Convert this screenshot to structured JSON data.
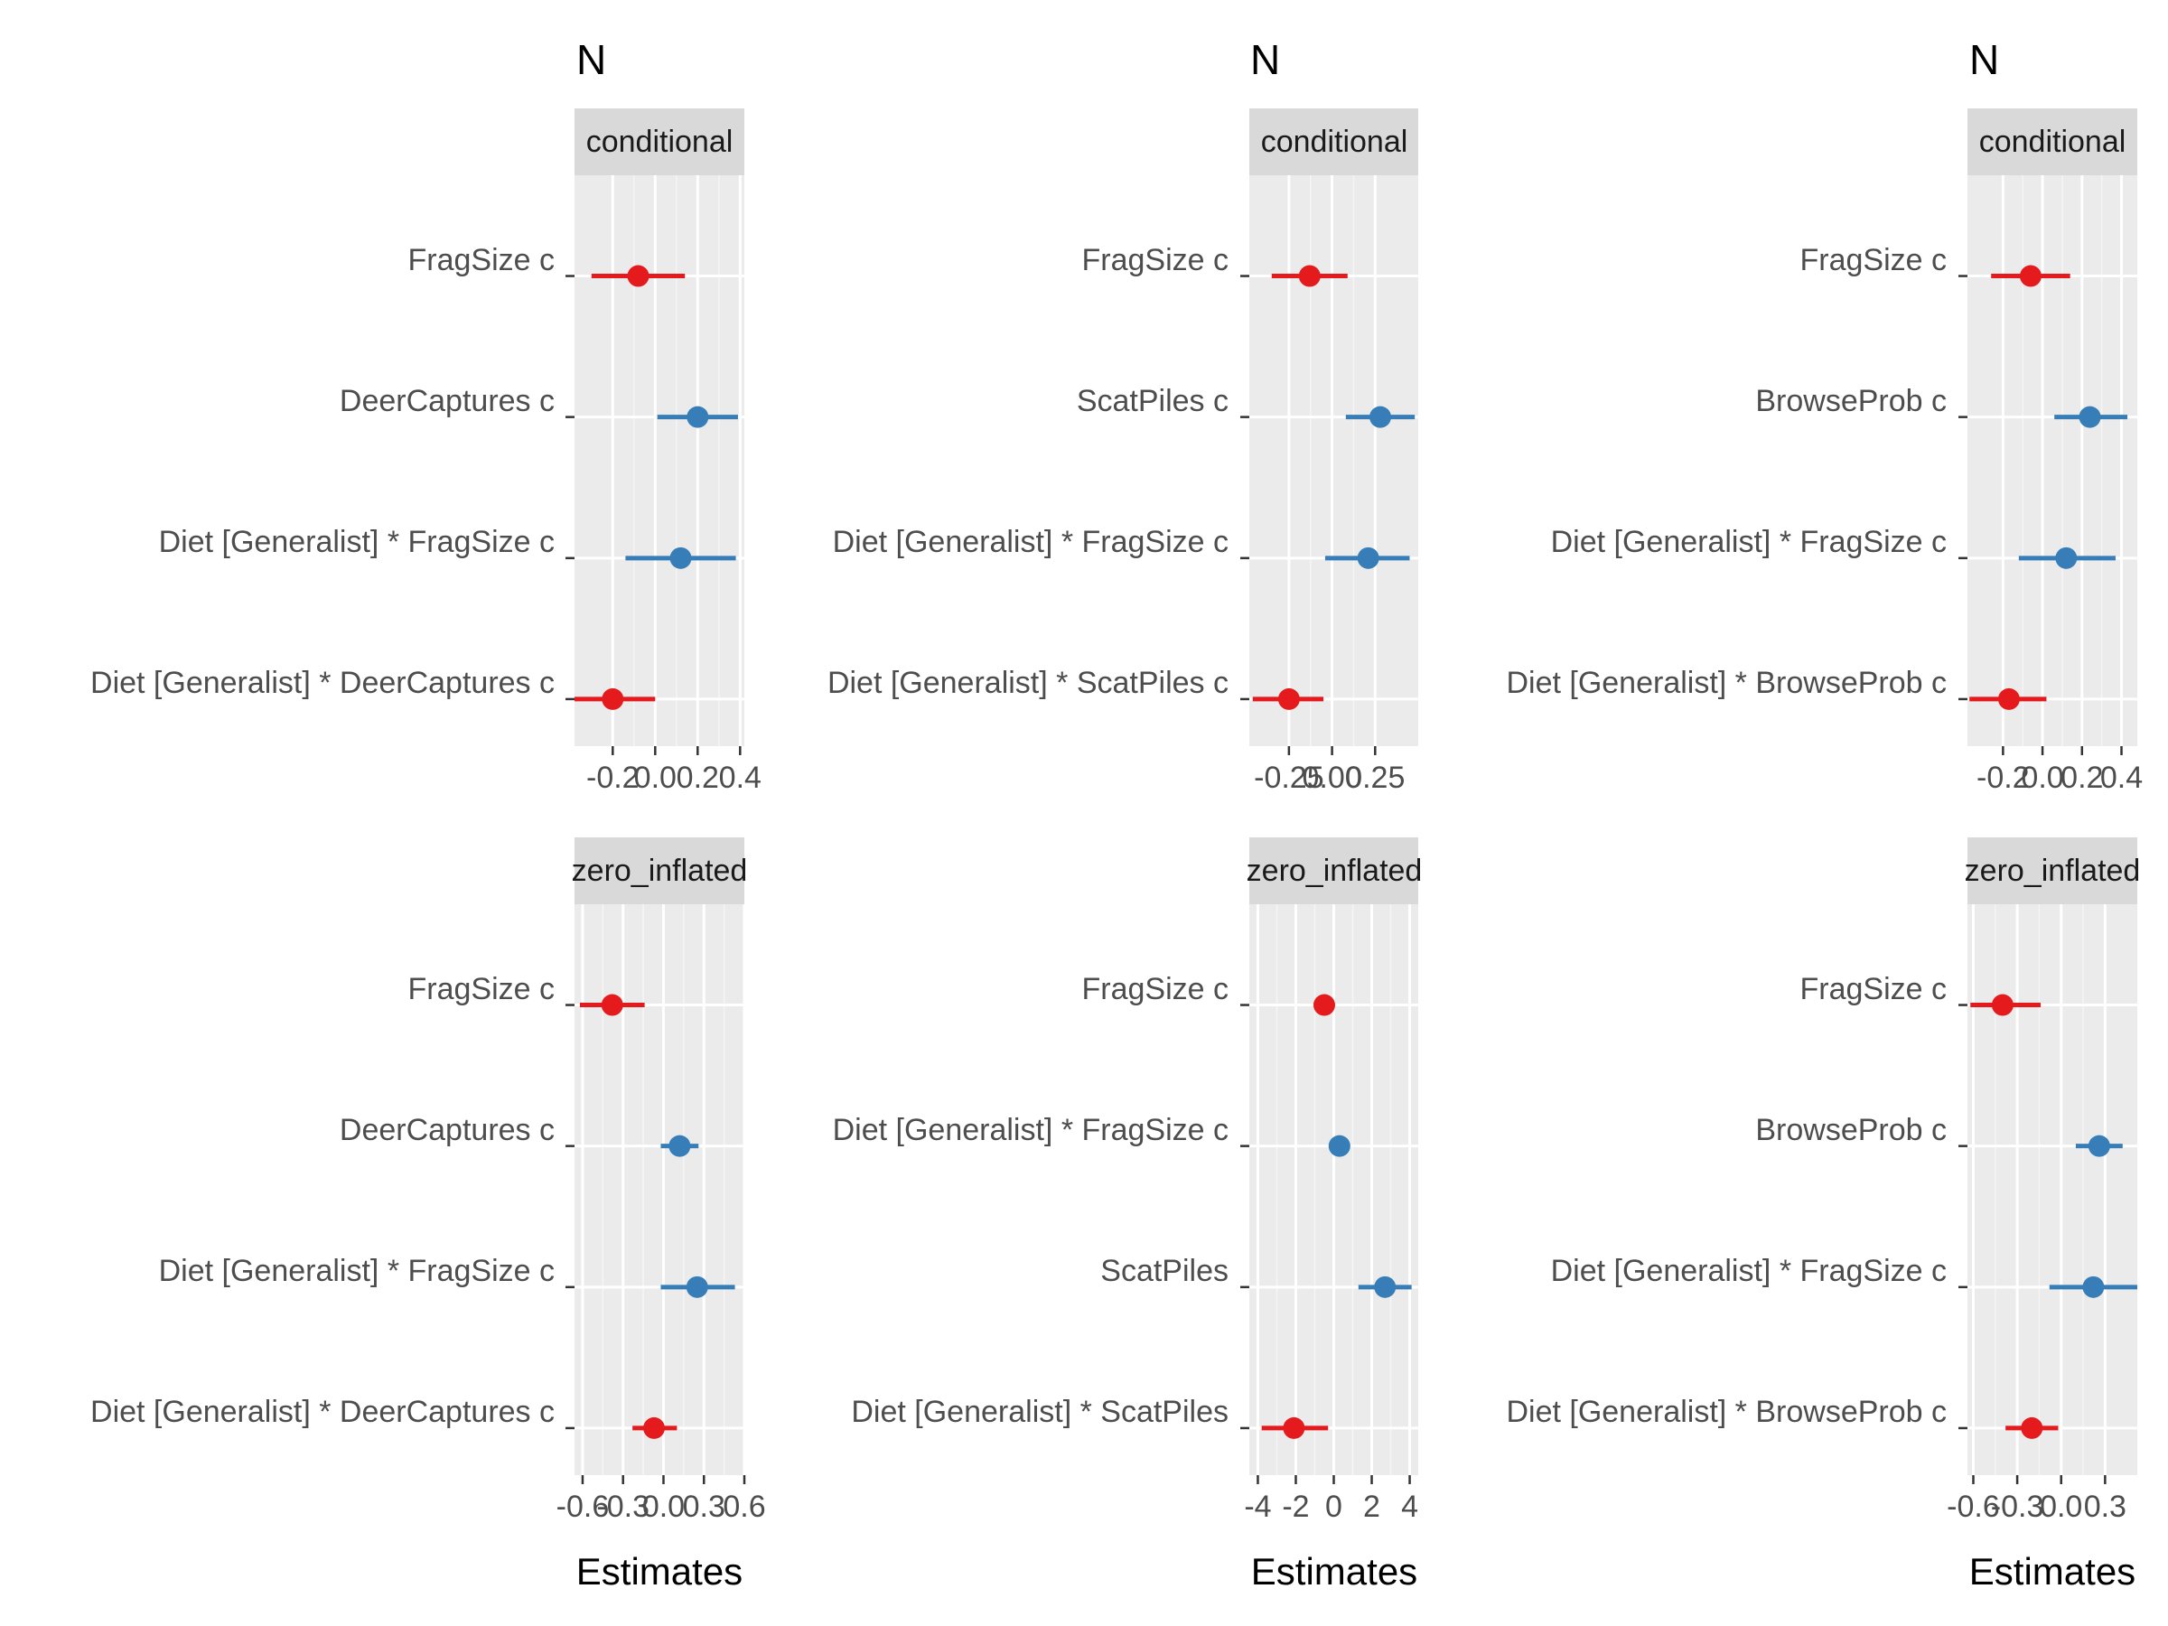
{
  "figure": {
    "columns": [
      {
        "title": "N",
        "xlabel": "Estimates",
        "panels": [
          {
            "strip": "conditional",
            "terms": [
              "FragSize c",
              "DeerCaptures c",
              "Diet [Generalist] * FragSize c",
              "Diet [Generalist] * DeerCaptures c"
            ],
            "ticks": [
              -0.2,
              0.0,
              0.2,
              0.4
            ],
            "tick_labels": [
              "-0.2",
              "0.0",
              "0.2",
              "0.4"
            ],
            "xlim": [
              -0.38,
              0.42
            ]
          },
          {
            "strip": "zero_inflated",
            "terms": [
              "FragSize c",
              "DeerCaptures c",
              "Diet [Generalist] * FragSize c",
              "Diet [Generalist] * DeerCaptures c"
            ],
            "ticks": [
              -0.6,
              -0.3,
              0.0,
              0.3,
              0.6
            ],
            "tick_labels": [
              "-0.6",
              "-0.3",
              "0.0",
              "0.3",
              "0.6"
            ],
            "xlim": [
              -0.66,
              0.6
            ]
          }
        ]
      },
      {
        "title": "N",
        "xlabel": "Estimates",
        "panels": [
          {
            "strip": "conditional",
            "terms": [
              "FragSize c",
              "ScatPiles c",
              "Diet [Generalist] * FragSize c",
              "Diet [Generalist] * ScatPiles c"
            ],
            "ticks": [
              -0.25,
              0.0,
              0.25
            ],
            "tick_labels": [
              "-0.25",
              "0.00",
              "0.25"
            ],
            "xlim": [
              -0.48,
              0.5
            ]
          },
          {
            "strip": "zero_inflated",
            "terms": [
              "FragSize c",
              "Diet [Generalist] * FragSize c",
              "ScatPiles",
              "Diet [Generalist] * ScatPiles"
            ],
            "ticks": [
              -4,
              -2,
              0,
              2,
              4
            ],
            "tick_labels": [
              "-4",
              "-2",
              "0",
              "2",
              "4"
            ],
            "xlim": [
              -4.45,
              4.45
            ]
          }
        ]
      },
      {
        "title": "N",
        "xlabel": "Estimates",
        "panels": [
          {
            "strip": "conditional",
            "terms": [
              "FragSize c",
              "BrowseProb c",
              "Diet [Generalist] * FragSize c",
              "Diet [Generalist] * BrowseProb c"
            ],
            "ticks": [
              -0.2,
              0.0,
              0.2,
              0.4
            ],
            "tick_labels": [
              "-0.2",
              "0.0",
              "0.2",
              "0.4"
            ],
            "xlim": [
              -0.38,
              0.48
            ]
          },
          {
            "strip": "zero_inflated",
            "terms": [
              "FragSize c",
              "BrowseProb c",
              "Diet [Generalist] * FragSize c",
              "Diet [Generalist] * BrowseProb c"
            ],
            "ticks": [
              -0.6,
              -0.3,
              0.0,
              0.3
            ],
            "tick_labels": [
              "-0.6",
              "-0.3",
              "0.0",
              "0.3"
            ],
            "xlim": [
              -0.64,
              0.52
            ]
          }
        ]
      }
    ]
  },
  "chart_data": [
    {
      "type": "scatter",
      "title": "N",
      "facet": "conditional",
      "xlabel": "Estimates",
      "categories": [
        "FragSize c",
        "DeerCaptures c",
        "Diet [Generalist] * FragSize c",
        "Diet [Generalist] * DeerCaptures c"
      ],
      "estimates": [
        -0.08,
        0.2,
        0.12,
        -0.2
      ],
      "ci_low": [
        -0.3,
        0.01,
        -0.14,
        -0.38
      ],
      "ci_high": [
        0.14,
        0.39,
        0.38,
        0.0
      ],
      "colors": [
        "#E41A1C",
        "#377EB8",
        "#377EB8",
        "#E41A1C"
      ],
      "xlim": [
        -0.38,
        0.42
      ]
    },
    {
      "type": "scatter",
      "title": "N",
      "facet": "zero_inflated",
      "xlabel": "Estimates",
      "categories": [
        "FragSize c",
        "DeerCaptures c",
        "Diet [Generalist] * FragSize c",
        "Diet [Generalist] * DeerCaptures c"
      ],
      "estimates": [
        -0.38,
        0.12,
        0.25,
        -0.07
      ],
      "ci_low": [
        -0.62,
        -0.02,
        -0.02,
        -0.23
      ],
      "ci_high": [
        -0.14,
        0.26,
        0.53,
        0.1
      ],
      "colors": [
        "#E41A1C",
        "#377EB8",
        "#377EB8",
        "#E41A1C"
      ],
      "xlim": [
        -0.66,
        0.6
      ]
    },
    {
      "type": "scatter",
      "title": "N",
      "facet": "conditional",
      "xlabel": "Estimates",
      "categories": [
        "FragSize c",
        "ScatPiles c",
        "Diet [Generalist] * FragSize c",
        "Diet [Generalist] * ScatPiles c"
      ],
      "estimates": [
        -0.13,
        0.28,
        0.21,
        -0.25
      ],
      "ci_low": [
        -0.35,
        0.08,
        -0.04,
        -0.46
      ],
      "ci_high": [
        0.09,
        0.48,
        0.45,
        -0.05
      ],
      "colors": [
        "#E41A1C",
        "#377EB8",
        "#377EB8",
        "#E41A1C"
      ],
      "xlim": [
        -0.48,
        0.5
      ]
    },
    {
      "type": "scatter",
      "title": "N",
      "facet": "zero_inflated",
      "xlabel": "Estimates",
      "categories": [
        "FragSize c",
        "Diet [Generalist] * FragSize c",
        "ScatPiles",
        "Diet [Generalist] * ScatPiles"
      ],
      "estimates": [
        -0.5,
        0.3,
        2.7,
        -2.1
      ],
      "ci_low": [
        -0.6,
        0.2,
        1.3,
        -3.8
      ],
      "ci_high": [
        -0.4,
        0.4,
        4.1,
        -0.3
      ],
      "colors": [
        "#E41A1C",
        "#377EB8",
        "#377EB8",
        "#E41A1C"
      ],
      "xlim": [
        -4.45,
        4.45
      ]
    },
    {
      "type": "scatter",
      "title": "N",
      "facet": "conditional",
      "xlabel": "Estimates",
      "categories": [
        "FragSize c",
        "BrowseProb c",
        "Diet [Generalist] * FragSize c",
        "Diet [Generalist] * BrowseProb c"
      ],
      "estimates": [
        -0.06,
        0.24,
        0.12,
        -0.17
      ],
      "ci_low": [
        -0.26,
        0.06,
        -0.12,
        -0.37
      ],
      "ci_high": [
        0.14,
        0.43,
        0.37,
        0.02
      ],
      "colors": [
        "#E41A1C",
        "#377EB8",
        "#377EB8",
        "#E41A1C"
      ],
      "xlim": [
        -0.38,
        0.48
      ]
    },
    {
      "type": "scatter",
      "title": "N",
      "facet": "zero_inflated",
      "xlabel": "Estimates",
      "categories": [
        "FragSize c",
        "BrowseProb c",
        "Diet [Generalist] * FragSize c",
        "Diet [Generalist] * BrowseProb c"
      ],
      "estimates": [
        -0.4,
        0.26,
        0.22,
        -0.2
      ],
      "ci_low": [
        -0.62,
        0.1,
        -0.08,
        -0.38
      ],
      "ci_high": [
        -0.14,
        0.42,
        0.52,
        -0.02
      ],
      "colors": [
        "#E41A1C",
        "#377EB8",
        "#377EB8",
        "#E41A1C"
      ],
      "xlim": [
        -0.64,
        0.52
      ]
    }
  ]
}
